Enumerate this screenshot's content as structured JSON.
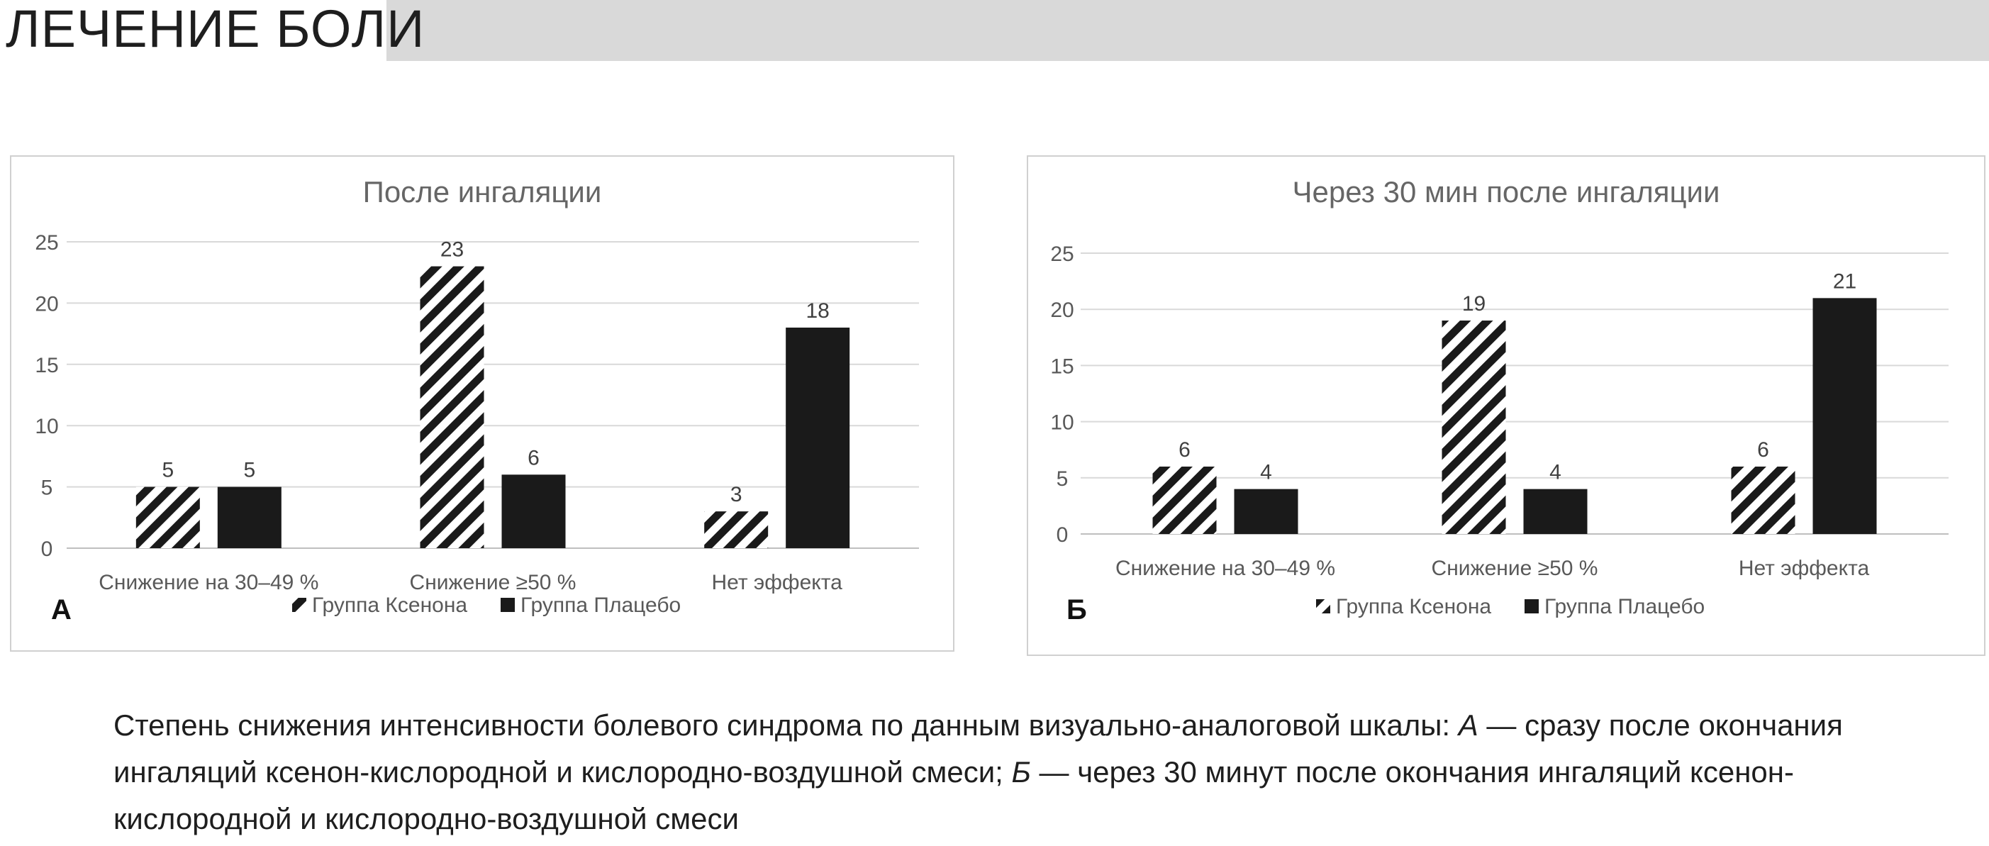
{
  "header": {
    "title": "ЛЕЧЕНИЕ БОЛИ"
  },
  "colors": {
    "header_band": "#d9d9d9",
    "grid": "#d9d9d9",
    "axis_text": "#595959",
    "bar_dark": "#1a1a1a",
    "title_text": "#666666"
  },
  "chart_data": [
    {
      "type": "bar",
      "panel_letter": "А",
      "title": "После ингаляции",
      "categories": [
        "Снижение на 30–49 %",
        "Снижение ≥50 %",
        "Нет эффекта"
      ],
      "series": [
        {
          "name": "Группа Ксенона",
          "pattern": "hatched",
          "values": [
            5,
            23,
            3
          ]
        },
        {
          "name": "Группа Плацебо",
          "pattern": "solid",
          "values": [
            5,
            6,
            18
          ]
        }
      ],
      "ylim": [
        0,
        25
      ],
      "yticks": [
        0,
        5,
        10,
        15,
        20,
        25
      ],
      "grid": true,
      "legend": "bottom",
      "data_labels": true
    },
    {
      "type": "bar",
      "panel_letter": "Б",
      "title": "Через 30 мин после ингаляции",
      "categories": [
        "Снижение на 30–49 %",
        "Снижение ≥50 %",
        "Нет эффекта"
      ],
      "series": [
        {
          "name": "Группа Ксенона",
          "pattern": "hatched",
          "values": [
            6,
            19,
            6
          ]
        },
        {
          "name": "Группа Плацебо",
          "pattern": "solid",
          "values": [
            4,
            4,
            21
          ]
        }
      ],
      "ylim": [
        0,
        25
      ],
      "yticks": [
        0,
        5,
        10,
        15,
        20,
        25
      ],
      "grid": true,
      "legend": "bottom",
      "data_labels": true
    }
  ],
  "caption": {
    "part1": "Степень снижения интенсивности болевого синдрома по данным визуально-аналоговой шкалы: ",
    "letter_a": "А",
    "part2": " — сразу после окончания ингаляций ксенон-кислородной и кислородно-воздушной смеси; ",
    "letter_b": "Б",
    "part3": " — через 30 минут после окончания ингаляций ксенон-кислородной и кислородно-воздушной смеси"
  }
}
